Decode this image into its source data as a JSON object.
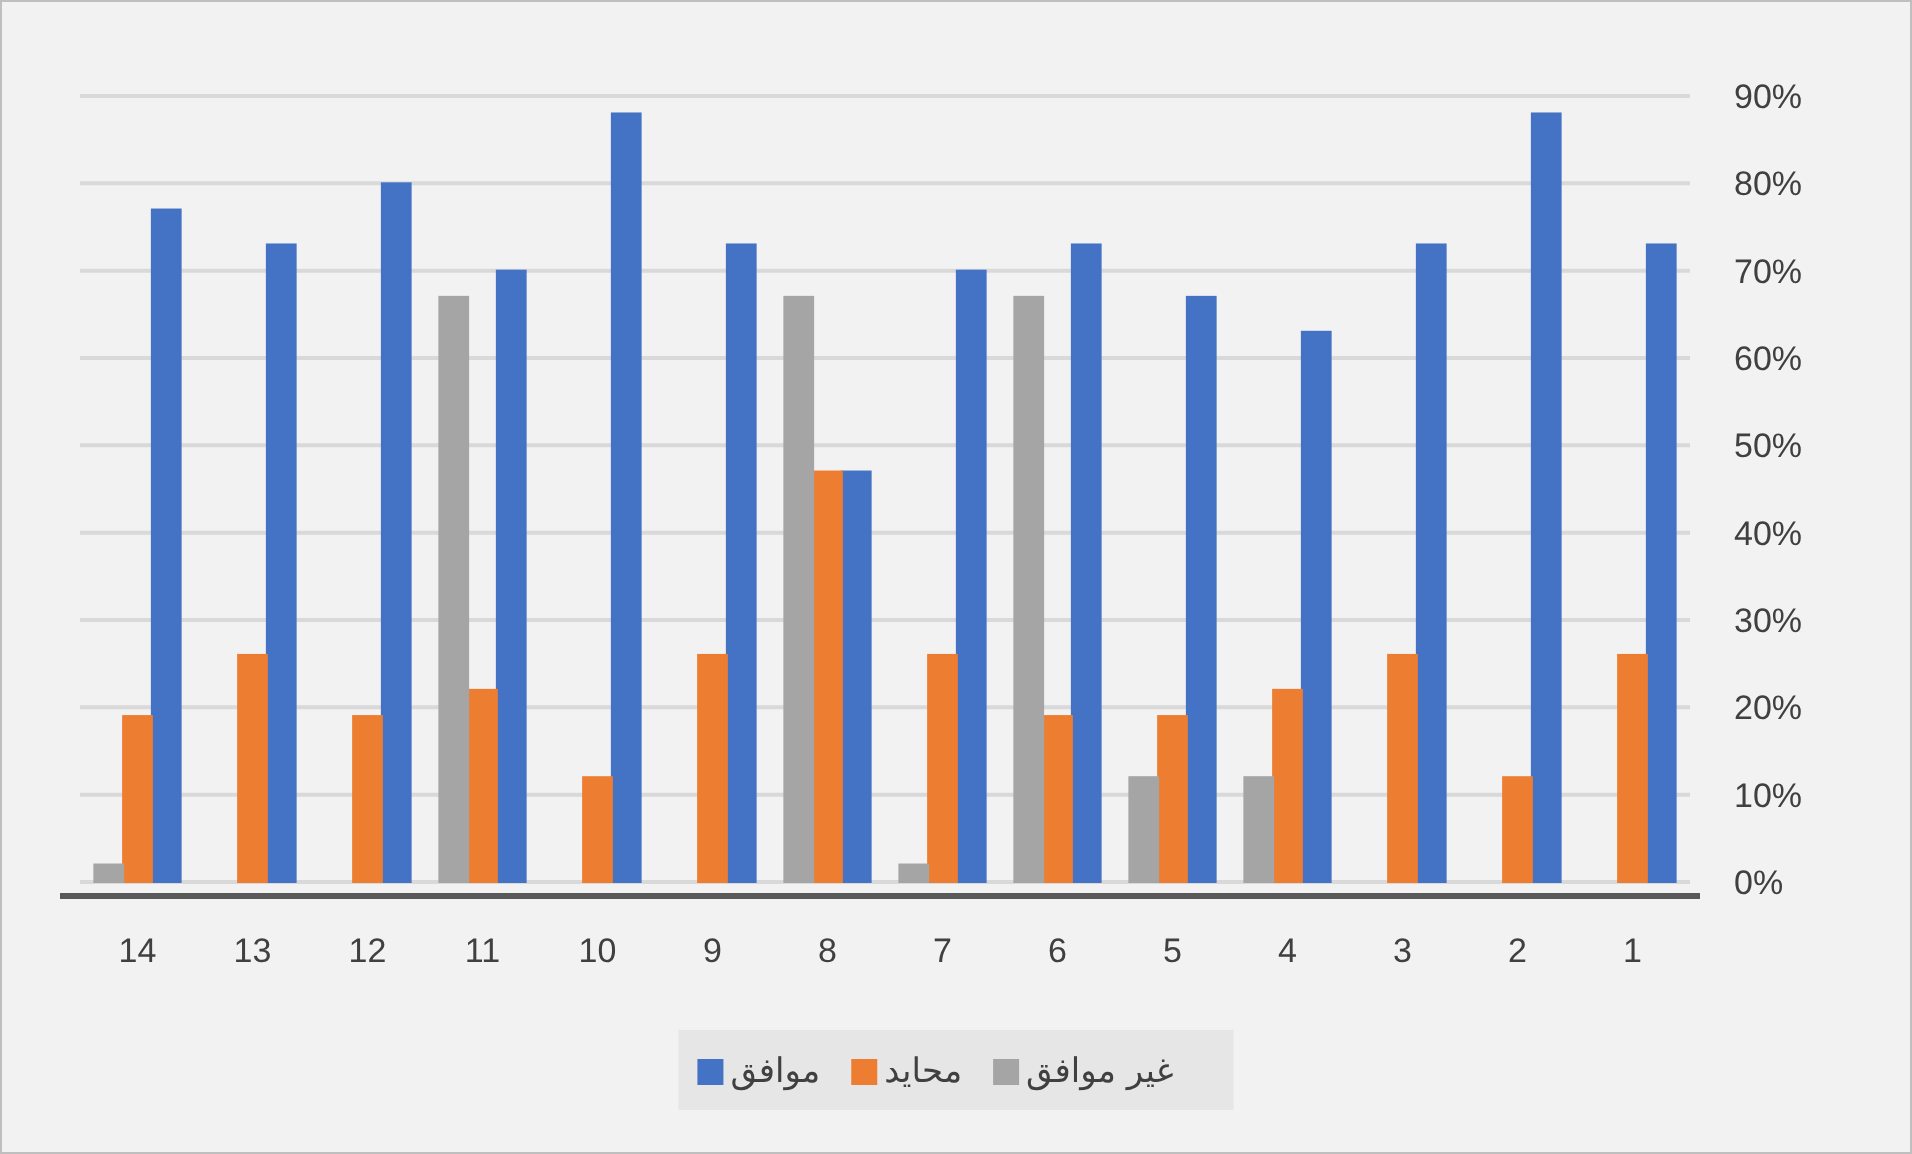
{
  "chart_data": {
    "type": "bar",
    "categories": [
      "14",
      "13",
      "12",
      "11",
      "10",
      "9",
      "8",
      "7",
      "6",
      "5",
      "4",
      "3",
      "2",
      "1"
    ],
    "series": [
      {
        "name": "موافق",
        "color": "#4472c4",
        "values": [
          77,
          73,
          80,
          70,
          88,
          73,
          47,
          70,
          73,
          67,
          63,
          73,
          88,
          73
        ]
      },
      {
        "name": "محايد",
        "color": "#ed7d31",
        "values": [
          19,
          26,
          19,
          22,
          12,
          26,
          47,
          26,
          19,
          19,
          22,
          26,
          12,
          26
        ]
      },
      {
        "name": "غير موافق",
        "color": "#a5a5a5",
        "values": [
          2,
          0,
          0,
          67,
          0,
          0,
          67,
          2,
          67,
          12,
          12,
          0,
          0,
          0
        ]
      }
    ],
    "ylim": [
      0,
      90
    ],
    "yticks": [
      {
        "value": 0,
        "label": "0%"
      },
      {
        "value": 10,
        "label": "10%"
      },
      {
        "value": 20,
        "label": "20%"
      },
      {
        "value": 30,
        "label": "30%"
      },
      {
        "value": 40,
        "label": "40%"
      },
      {
        "value": 50,
        "label": "50%"
      },
      {
        "value": 60,
        "label": "60%"
      },
      {
        "value": 70,
        "label": "70%"
      },
      {
        "value": 80,
        "label": "80%"
      },
      {
        "value": 90,
        "label": "90%"
      }
    ],
    "grid": "y",
    "legend": "bottom"
  }
}
